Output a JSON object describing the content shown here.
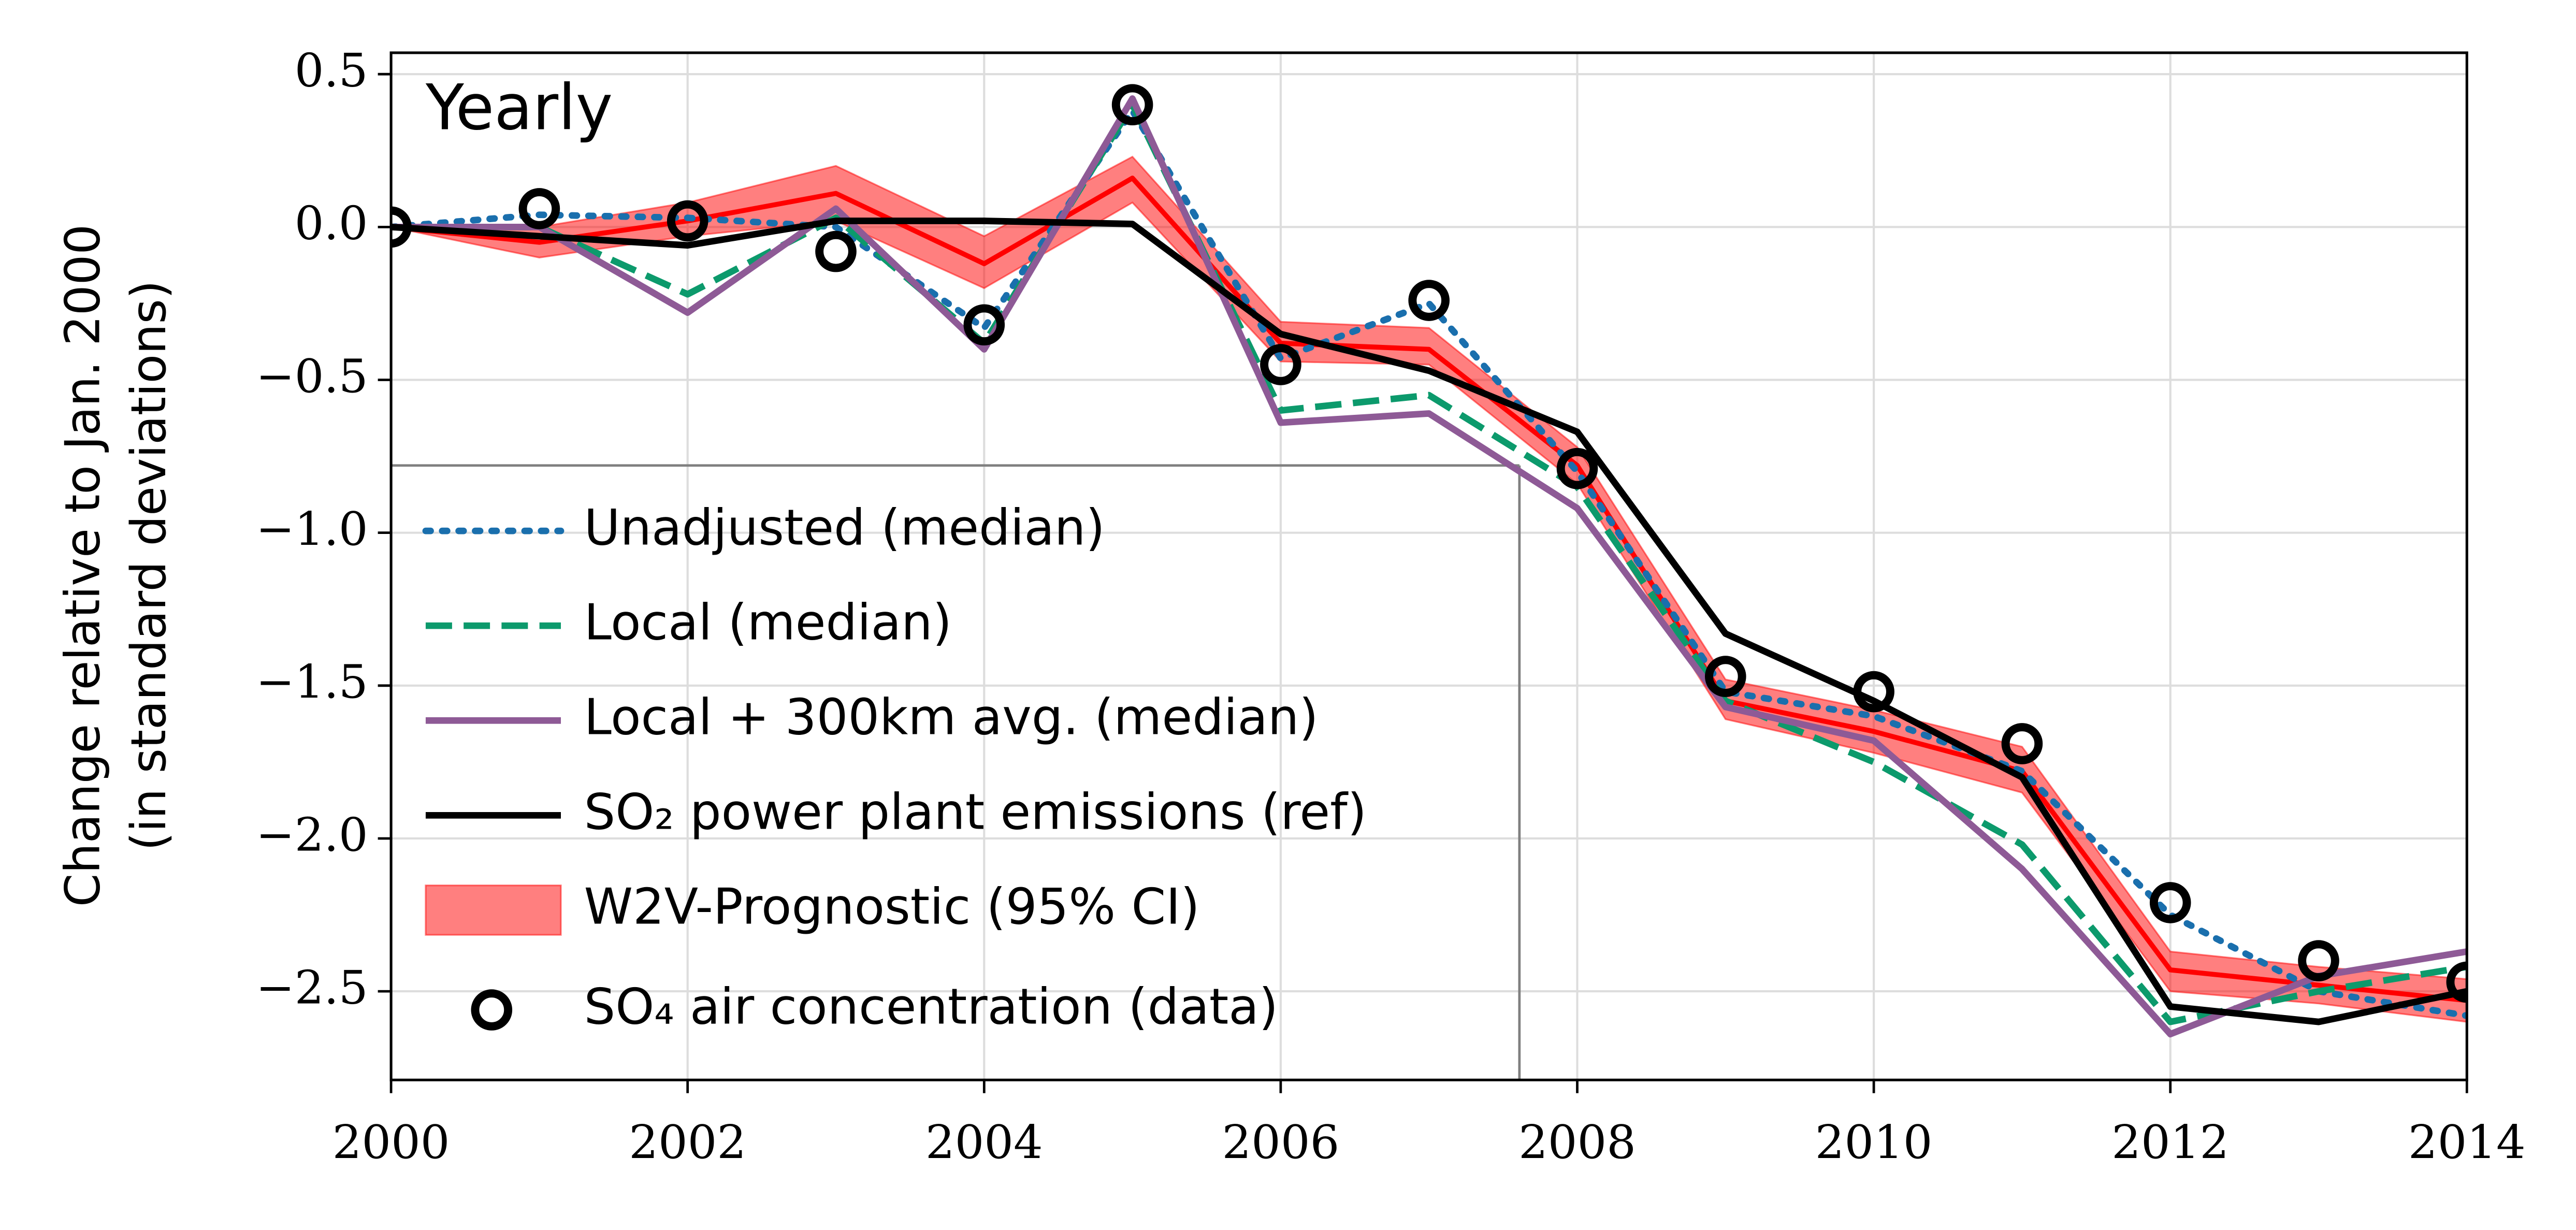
{
  "chart_data": {
    "type": "line",
    "annotation": "Yearly",
    "y_label": [
      "Change relative to Jan. 2000",
      "(in standard deviations)"
    ],
    "x": [
      2000,
      2001,
      2002,
      2003,
      2004,
      2005,
      2006,
      2007,
      2008,
      2009,
      2010,
      2011,
      2012,
      2013,
      2014
    ],
    "xlim": [
      2000,
      2014
    ],
    "xticks": [
      2000,
      2002,
      2004,
      2006,
      2008,
      2010,
      2012,
      2014
    ],
    "ylim": [
      -2.79,
      0.57
    ],
    "yticks": [
      0.5,
      {
        "value": 0,
        "label": "0.0"
      },
      {
        "value": -0.5,
        "label": "−0.5"
      },
      {
        "value": -1,
        "label": "−1.0"
      },
      {
        "value": -1.5,
        "label": "−1.5"
      },
      {
        "value": -2,
        "label": "−2.0"
      },
      {
        "value": -2.5,
        "label": "−2.5"
      }
    ],
    "grid": true,
    "legend": "lower left",
    "reference_lines": {
      "x": 2007.61,
      "y": -0.78,
      "color": "#808080"
    },
    "series": [
      {
        "name": "Unadjusted (median)",
        "color": "#1a6fad",
        "style": "dotted",
        "values": [
          0,
          0.04,
          0.03,
          0.0,
          -0.33,
          0.38,
          -0.43,
          -0.25,
          -0.8,
          -1.52,
          -1.6,
          -1.78,
          -2.25,
          -2.5,
          -2.58
        ]
      },
      {
        "name": "Local (median)",
        "color": "#0c9a6c",
        "style": "dashed",
        "values": [
          0,
          0.0,
          -0.22,
          0.03,
          -0.38,
          0.4,
          -0.6,
          -0.55,
          -0.85,
          -1.55,
          -1.75,
          -2.02,
          -2.6,
          -2.5,
          -2.42
        ]
      },
      {
        "name": "Local + 300km avg. (median)",
        "color": "#8e5a96",
        "style": "solid",
        "values": [
          0,
          0.0,
          -0.28,
          0.06,
          -0.4,
          0.42,
          -0.64,
          -0.61,
          -0.92,
          -1.57,
          -1.68,
          -2.1,
          -2.64,
          -2.45,
          -2.37
        ]
      },
      {
        "name": "SO₂ power plant emissions (ref)",
        "color": "#000000",
        "style": "solid",
        "values": [
          0,
          -0.03,
          -0.06,
          0.02,
          0.02,
          0.01,
          -0.35,
          -0.47,
          -0.67,
          -1.33,
          -1.55,
          -1.8,
          -2.55,
          -2.6,
          -2.5
        ]
      },
      {
        "name": "W2V-Prognostic (95% CI)",
        "color": "#ff0000",
        "style": "band",
        "values": [
          0,
          -0.05,
          0.02,
          0.11,
          -0.12,
          0.16,
          -0.38,
          -0.4,
          -0.78,
          -1.55,
          -1.65,
          -1.78,
          -2.43,
          -2.48,
          -2.53
        ],
        "lower": [
          0,
          -0.1,
          -0.03,
          0.02,
          -0.2,
          0.08,
          -0.44,
          -0.45,
          -0.84,
          -1.61,
          -1.72,
          -1.85,
          -2.5,
          -2.54,
          -2.6
        ],
        "upper": [
          0,
          0.0,
          0.08,
          0.2,
          -0.03,
          0.23,
          -0.31,
          -0.33,
          -0.72,
          -1.48,
          -1.58,
          -1.7,
          -2.37,
          -2.42,
          -2.46
        ]
      },
      {
        "name": "SO₄ air concentration (data)",
        "color": "#000000",
        "style": "markers",
        "values": [
          0,
          0.06,
          0.02,
          -0.08,
          -0.32,
          0.4,
          -0.45,
          -0.24,
          -0.79,
          -1.47,
          -1.52,
          -1.69,
          -2.21,
          -2.4,
          -2.47
        ]
      }
    ]
  }
}
